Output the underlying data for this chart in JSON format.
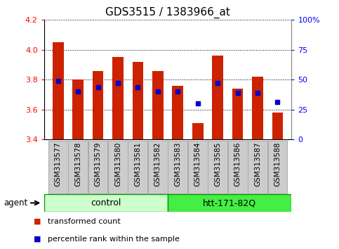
{
  "title": "GDS3515 / 1383966_at",
  "samples": [
    "GSM313577",
    "GSM313578",
    "GSM313579",
    "GSM313580",
    "GSM313581",
    "GSM313582",
    "GSM313583",
    "GSM313584",
    "GSM313585",
    "GSM313586",
    "GSM313587",
    "GSM313588"
  ],
  "bar_values": [
    4.05,
    3.8,
    3.86,
    3.95,
    3.92,
    3.86,
    3.76,
    3.51,
    3.96,
    3.74,
    3.82,
    3.58
  ],
  "percentile_values": [
    3.79,
    3.72,
    3.75,
    3.78,
    3.75,
    3.72,
    3.72,
    3.64,
    3.78,
    3.71,
    3.71,
    3.65
  ],
  "ylim_left": [
    3.4,
    4.2
  ],
  "yticks_left": [
    3.4,
    3.6,
    3.8,
    4.0,
    4.2
  ],
  "ylim_right": [
    0,
    100
  ],
  "yticks_right": [
    0,
    25,
    50,
    75,
    100
  ],
  "ytick_right_labels": [
    "0",
    "25",
    "50",
    "75",
    "100%"
  ],
  "bar_color": "#cc2200",
  "square_color": "#0000cc",
  "background_color": "#ffffff",
  "control_color": "#ccffcc",
  "htt_color": "#44ee44",
  "group_edge_color": "#009900",
  "tick_box_color": "#cccccc",
  "tick_box_edge": "#aaaaaa",
  "agent_label": "agent",
  "bar_width": 0.55,
  "tick_label_fontsize": 7.5,
  "title_fontsize": 11,
  "legend_items": [
    {
      "label": "transformed count",
      "color": "#cc2200"
    },
    {
      "label": "percentile rank within the sample",
      "color": "#0000cc"
    }
  ]
}
